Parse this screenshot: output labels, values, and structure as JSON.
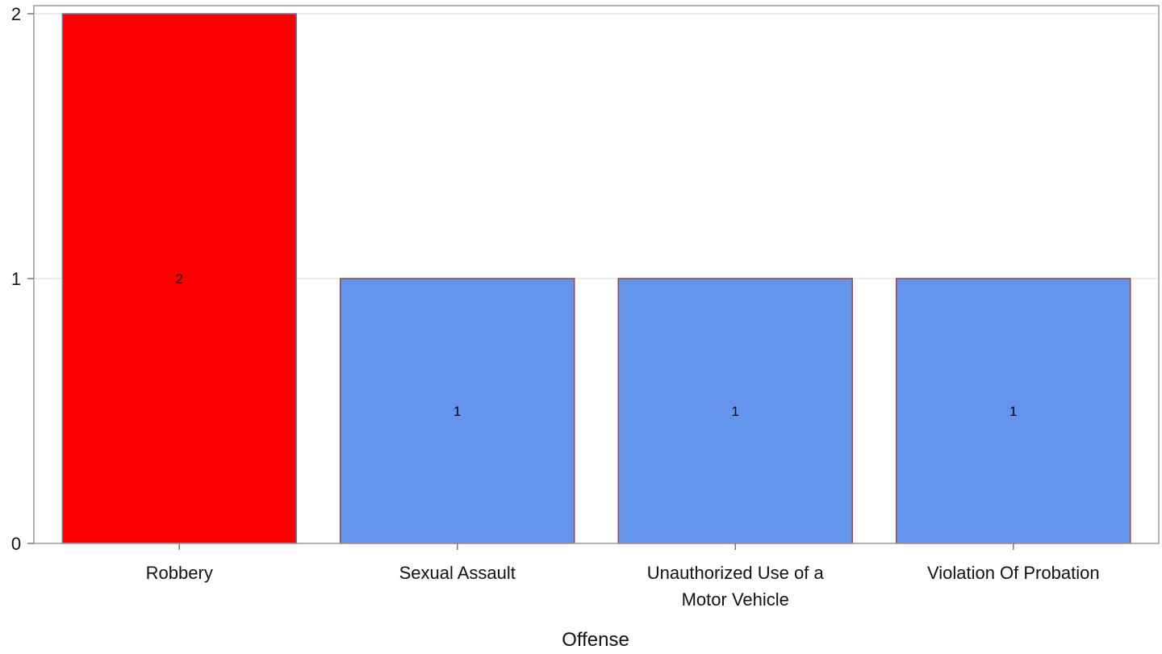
{
  "chart_data": {
    "type": "bar",
    "title": "",
    "xlabel": "Offense",
    "ylabel": "",
    "categories": [
      "Robbery",
      "Sexual Assault",
      "Unauthorized Use of a Motor Vehicle",
      "Violation Of Probation"
    ],
    "category_label_lines": [
      [
        "Robbery"
      ],
      [
        "Sexual Assault"
      ],
      [
        "Unauthorized Use of a",
        "Motor Vehicle"
      ],
      [
        "Violation Of Probation"
      ]
    ],
    "values": [
      2,
      1,
      1,
      1
    ],
    "data_labels": [
      "2",
      "1",
      "1",
      "1"
    ],
    "bar_colors": [
      "#ff0000",
      "#6495ed",
      "#6495ed",
      "#6495ed"
    ],
    "bar_edge_colors": [
      "#6a7fb8",
      "#a0463f",
      "#a0463f",
      "#a0463f"
    ],
    "ylim": [
      0,
      2
    ],
    "yticks": [
      0,
      1,
      2
    ],
    "grid": true,
    "legend": "none"
  }
}
